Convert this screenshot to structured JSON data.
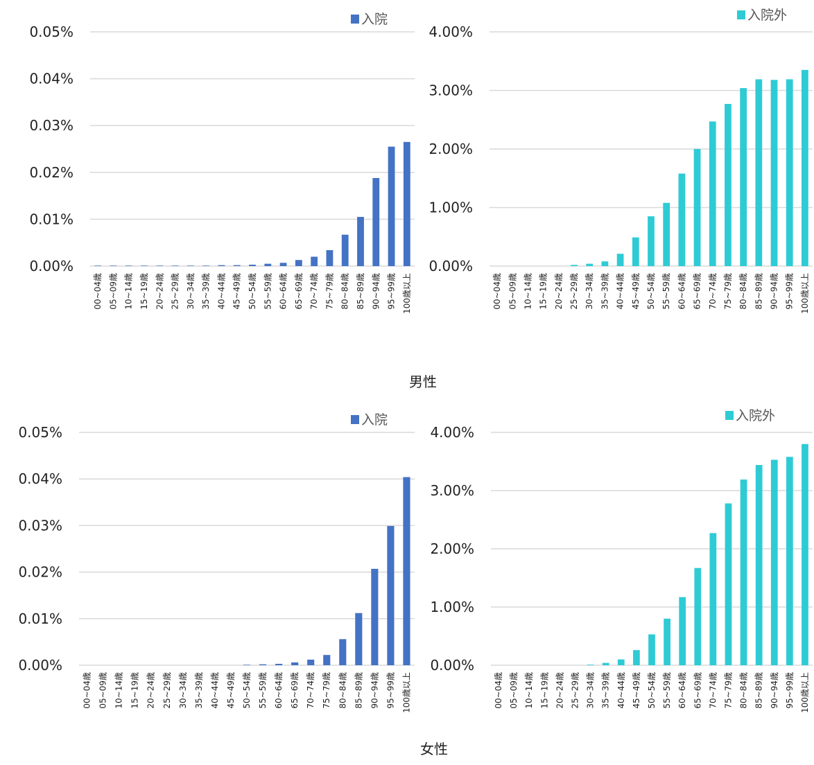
{
  "sections": [
    {
      "label": "男性"
    },
    {
      "label": "女性"
    }
  ],
  "chart_data": [
    {
      "type": "bar",
      "section": "男性",
      "categories": [
        "00~04歳",
        "05~09歳",
        "10~14歳",
        "15~19歳",
        "20~24歳",
        "25~29歳",
        "30~34歳",
        "35~39歳",
        "40~44歳",
        "45~49歳",
        "50~54歳",
        "55~59歳",
        "60~64歳",
        "65~69歳",
        "70~74歳",
        "75~79歳",
        "80~84歳",
        "85~89歳",
        "90~94歳",
        "95~99歳",
        "100歳以上"
      ],
      "series": [
        {
          "name": "入院",
          "color": "#4472C4",
          "values": [
            0.0001,
            0.0001,
            0.0001,
            0.0001,
            0.0001,
            0.0001,
            0.0001,
            0.0001,
            0.0002,
            0.0002,
            0.0003,
            0.0005,
            0.0007,
            0.0013,
            0.002,
            0.0034,
            0.0067,
            0.0105,
            0.0188,
            0.0255,
            0.0265
          ]
        }
      ],
      "yticks": [
        "0.00%",
        "0.01%",
        "0.02%",
        "0.03%",
        "0.04%",
        "0.05%"
      ],
      "ylim": [
        0,
        0.05
      ],
      "legend": "top-right",
      "grid": true
    },
    {
      "type": "bar",
      "section": "男性",
      "categories": [
        "00~04歳",
        "05~09歳",
        "10~14歳",
        "15~19歳",
        "20~24歳",
        "25~29歳",
        "30~34歳",
        "35~39歳",
        "40~44歳",
        "45~49歳",
        "50~54歳",
        "55~59歳",
        "60~64歳",
        "65~69歳",
        "70~74歳",
        "75~79歳",
        "80~84歳",
        "85~89歳",
        "90~94歳",
        "95~99歳",
        "100歳以上"
      ],
      "series": [
        {
          "name": "入院外",
          "color": "#2ECBD5",
          "values": [
            0,
            0,
            0,
            0,
            0,
            0.0002,
            0.0004,
            0.0008,
            0.0021,
            0.0049,
            0.0085,
            0.0108,
            0.0158,
            0.02,
            0.0247,
            0.0277,
            0.0304,
            0.0319,
            0.0318,
            0.0319,
            0.0335
          ]
        }
      ],
      "yticks": [
        "0.00%",
        "1.00%",
        "2.00%",
        "3.00%",
        "4.00%"
      ],
      "ylim": [
        0,
        0.04
      ],
      "legend": "top-right",
      "grid": true
    },
    {
      "type": "bar",
      "section": "女性",
      "categories": [
        "00~04歳",
        "05~09歳",
        "10~14歳",
        "15~19歳",
        "20~24歳",
        "25~29歳",
        "30~34歳",
        "35~39歳",
        "40~44歳",
        "45~49歳",
        "50~54歳",
        "55~59歳",
        "60~64歳",
        "65~69歳",
        "70~74歳",
        "75~79歳",
        "80~84歳",
        "85~89歳",
        "90~94歳",
        "95~99歳",
        "100歳以上"
      ],
      "series": [
        {
          "name": "入院",
          "color": "#4472C4",
          "values": [
            0,
            0,
            0,
            0,
            0,
            0,
            0,
            0,
            0,
            0,
            0.0001,
            0.0002,
            0.0003,
            0.0006,
            0.0012,
            0.0022,
            0.0056,
            0.0112,
            0.0207,
            0.0299,
            0.0404
          ]
        }
      ],
      "yticks": [
        "0.00%",
        "0.01%",
        "0.02%",
        "0.03%",
        "0.04%",
        "0.05%"
      ],
      "ylim": [
        0,
        0.05
      ],
      "legend": "top-right",
      "grid": true
    },
    {
      "type": "bar",
      "section": "女性",
      "categories": [
        "00~04歳",
        "05~09歳",
        "10~14歳",
        "15~19歳",
        "20~24歳",
        "25~29歳",
        "30~34歳",
        "35~39歳",
        "40~44歳",
        "45~49歳",
        "50~54歳",
        "55~59歳",
        "60~64歳",
        "65~69歳",
        "70~74歳",
        "75~79歳",
        "80~84歳",
        "85~89歳",
        "90~94歳",
        "95~99歳",
        "100歳以上"
      ],
      "series": [
        {
          "name": "入院外",
          "color": "#2ECBD5",
          "values": [
            0,
            0,
            0,
            0,
            0,
            0,
            0.0001,
            0.0004,
            0.001,
            0.0026,
            0.0053,
            0.008,
            0.0117,
            0.0167,
            0.0227,
            0.0278,
            0.0319,
            0.0344,
            0.0353,
            0.0358,
            0.038
          ]
        }
      ],
      "yticks": [
        "0.00%",
        "1.00%",
        "2.00%",
        "3.00%",
        "4.00%"
      ],
      "ylim": [
        0,
        0.04
      ],
      "legend": "top-right",
      "grid": true
    }
  ]
}
